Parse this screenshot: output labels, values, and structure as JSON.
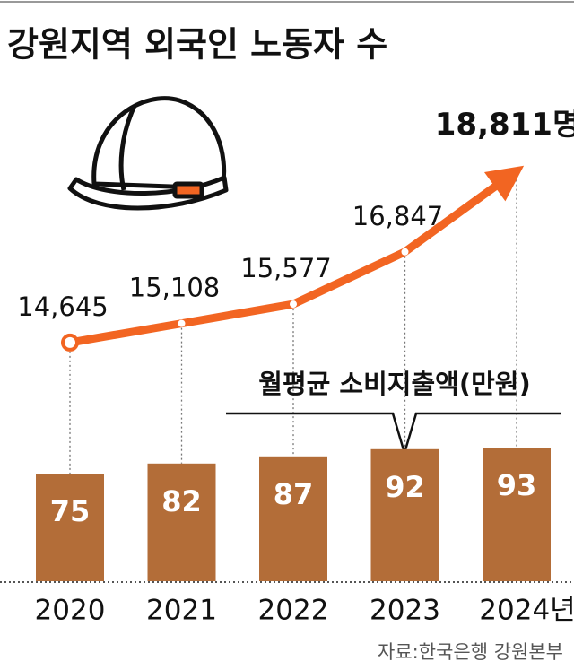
{
  "chart_data": {
    "type": "bar",
    "title": "강원지역 외국인 노동자 수",
    "categories": [
      "2020",
      "2021",
      "2022",
      "2023",
      "2024년"
    ],
    "series": [
      {
        "name": "월평균 소비지출액(만원)",
        "type": "bar",
        "color": "#b36d38",
        "values": [
          75,
          82,
          87,
          92,
          93
        ]
      },
      {
        "type": "line",
        "axis": "y2",
        "color": "#f26522",
        "values": [
          14645,
          15108,
          15577,
          16847,
          18811
        ],
        "value_labels": [
          "14,645",
          "15,108",
          "15,577",
          "16,847",
          "18,811명"
        ]
      }
    ],
    "ylim": [
      0,
      100
    ],
    "y2lim": [
      8000,
      20000
    ],
    "source": "자료:한국은행 강원본부"
  }
}
